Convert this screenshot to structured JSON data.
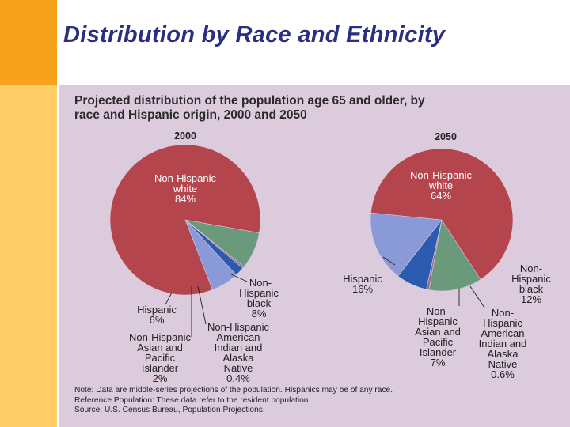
{
  "slide": {
    "title": "Distribution by Race and Ethnicity",
    "colors": {
      "orange_bar": "#f7a21b",
      "yellow_bar": "#ffcc66",
      "panel": "#dccbdd",
      "title_text": "#2b2f7f"
    }
  },
  "figure": {
    "title_line1": "Projected distribution of the population age 65 and older, by",
    "title_line2": "race and Hispanic origin, 2000 and 2050",
    "note_line1": "Note: Data are middle-series projections of the population. Hispanics may be of any race.",
    "note_line2": "Reference Population:  These data refer to the resident population.",
    "note_line3": "Source: U.S. Census Bureau, Population Projections."
  },
  "chart_data": [
    {
      "type": "pie",
      "title": "2000",
      "slices": [
        {
          "label": "Non-Hispanic white",
          "value": 84,
          "display": "84%",
          "color": "#b4454d"
        },
        {
          "label": "Non-Hispanic black",
          "value": 8,
          "display": "8%",
          "color": "#6a9a7b"
        },
        {
          "label": "Non-Hispanic American Indian and Alaska Native",
          "value": 0.4,
          "display": "0.4%",
          "color": "#9a6a8c"
        },
        {
          "label": "Non-Hispanic Asian and Pacific Islander",
          "value": 2,
          "display": "2%",
          "color": "#2a5bb0"
        },
        {
          "label": "Hispanic",
          "value": 6,
          "display": "6%",
          "color": "#8a9ad8"
        }
      ]
    },
    {
      "type": "pie",
      "title": "2050",
      "slices": [
        {
          "label": "Non-Hispanic white",
          "value": 64,
          "display": "64%",
          "color": "#b4454d"
        },
        {
          "label": "Non-Hispanic black",
          "value": 12,
          "display": "12%",
          "color": "#6a9a7b"
        },
        {
          "label": "Non-Hispanic American Indian and Alaska Native",
          "value": 0.6,
          "display": "0.6%",
          "color": "#9a6a8c"
        },
        {
          "label": "Non-Hispanic Asian and Pacific Islander",
          "value": 7,
          "display": "7%",
          "color": "#2a5bb0"
        },
        {
          "label": "Hispanic",
          "value": 16,
          "display": "16%",
          "color": "#8a9ad8"
        }
      ]
    }
  ]
}
